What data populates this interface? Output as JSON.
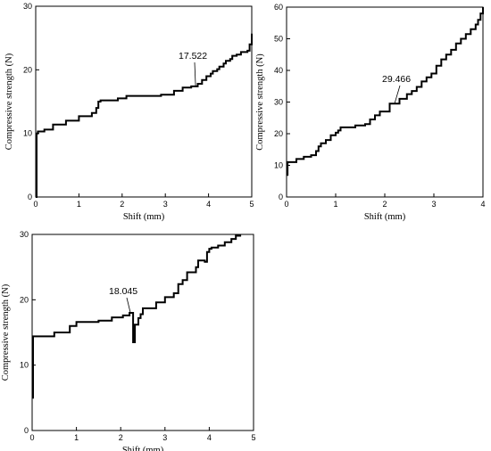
{
  "chart_data": [
    {
      "type": "line",
      "xlabel": "Shift (mm)",
      "ylabel": "Compressive strength (N)",
      "xlim": [
        0,
        5
      ],
      "ylim": [
        0,
        30
      ],
      "xticks": [
        "0",
        "1",
        "2",
        "3",
        "4",
        "5"
      ],
      "yticks": [
        "0",
        "10",
        "20",
        "30"
      ],
      "grid": false,
      "annotation": {
        "text": "17.522",
        "x": 3.7,
        "y": 17.5
      },
      "series": [
        {
          "x": [
            0,
            0.02,
            0.05,
            0.2,
            0.4,
            0.7,
            1.0,
            1.3,
            1.4,
            1.45,
            1.5,
            1.9,
            2.1,
            2.5,
            2.9,
            3.2,
            3.4,
            3.6,
            3.75,
            3.85,
            3.95,
            4.05,
            4.1,
            4.2,
            4.25,
            4.35,
            4.4,
            4.5,
            4.55,
            4.65,
            4.75,
            4.9,
            4.95,
            5.0
          ],
          "y": [
            0,
            10.0,
            10.3,
            10.6,
            11.4,
            12.0,
            12.7,
            13.2,
            14.0,
            15.0,
            15.2,
            15.5,
            15.9,
            15.9,
            16.1,
            16.7,
            17.2,
            17.4,
            17.8,
            18.4,
            19.0,
            19.4,
            19.8,
            20.1,
            20.5,
            21.0,
            21.4,
            21.7,
            22.2,
            22.4,
            22.8,
            23.0,
            24.0,
            25.7
          ]
        }
      ]
    },
    {
      "type": "line",
      "xlabel": "Shift (mm)",
      "ylabel": "Compressive strength (N)",
      "xlim": [
        0,
        4
      ],
      "ylim": [
        0,
        60
      ],
      "xticks": [
        "0",
        "1",
        "2",
        "3",
        "4"
      ],
      "yticks": [
        "0",
        "10",
        "20",
        "30",
        "40",
        "50",
        "60"
      ],
      "grid": false,
      "annotation": {
        "text": "29.466",
        "x": 2.2,
        "y": 29.5
      },
      "series": [
        {
          "x": [
            0,
            0.02,
            0.2,
            0.35,
            0.5,
            0.6,
            0.65,
            0.7,
            0.8,
            0.9,
            1.0,
            1.05,
            1.1,
            1.4,
            1.6,
            1.7,
            1.8,
            1.9,
            2.1,
            2.3,
            2.45,
            2.55,
            2.65,
            2.75,
            2.85,
            2.95,
            3.05,
            3.15,
            3.25,
            3.35,
            3.45,
            3.55,
            3.65,
            3.75,
            3.85,
            3.9,
            3.95,
            4.0
          ],
          "y": [
            7,
            11.0,
            12.0,
            12.7,
            13.2,
            14.5,
            16.0,
            17.0,
            18.0,
            19.5,
            20.3,
            21.0,
            22.0,
            22.6,
            23.0,
            24.5,
            25.8,
            27.0,
            29.5,
            31.0,
            32.5,
            33.5,
            34.8,
            36.5,
            37.8,
            39.0,
            41.5,
            43.5,
            45.0,
            46.5,
            48.5,
            50.0,
            51.5,
            53.0,
            54.5,
            56.0,
            58.0,
            60.0
          ]
        }
      ]
    },
    {
      "type": "line",
      "xlabel": "Shift (mm)",
      "ylabel": "Compressive strength (N)",
      "xlim": [
        0,
        5
      ],
      "ylim": [
        0,
        30
      ],
      "xticks": [
        "0",
        "1",
        "2",
        "3",
        "4",
        "5"
      ],
      "yticks": [
        "0",
        "10",
        "20",
        "30"
      ],
      "grid": false,
      "annotation": {
        "text": "18.045",
        "x": 2.22,
        "y": 18.0
      },
      "series": [
        {
          "x": [
            0,
            0.02,
            0.5,
            0.85,
            1.0,
            1.5,
            1.8,
            2.05,
            2.2,
            2.25,
            2.28,
            2.32,
            2.4,
            2.45,
            2.5,
            2.8,
            3.0,
            3.2,
            3.3,
            3.4,
            3.5,
            3.7,
            3.75,
            3.9,
            3.95,
            4.0,
            4.05,
            4.2,
            4.35,
            4.5,
            4.6,
            4.7
          ],
          "y": [
            5,
            14.4,
            15.0,
            16.0,
            16.6,
            16.8,
            17.3,
            17.6,
            18.0,
            18.0,
            13.5,
            16.2,
            17.2,
            17.8,
            18.7,
            19.6,
            20.4,
            21.0,
            22.4,
            23.0,
            24.2,
            25.0,
            26.0,
            25.8,
            27.3,
            27.8,
            28.0,
            28.3,
            28.8,
            29.3,
            29.8,
            30.0
          ]
        }
      ]
    }
  ]
}
